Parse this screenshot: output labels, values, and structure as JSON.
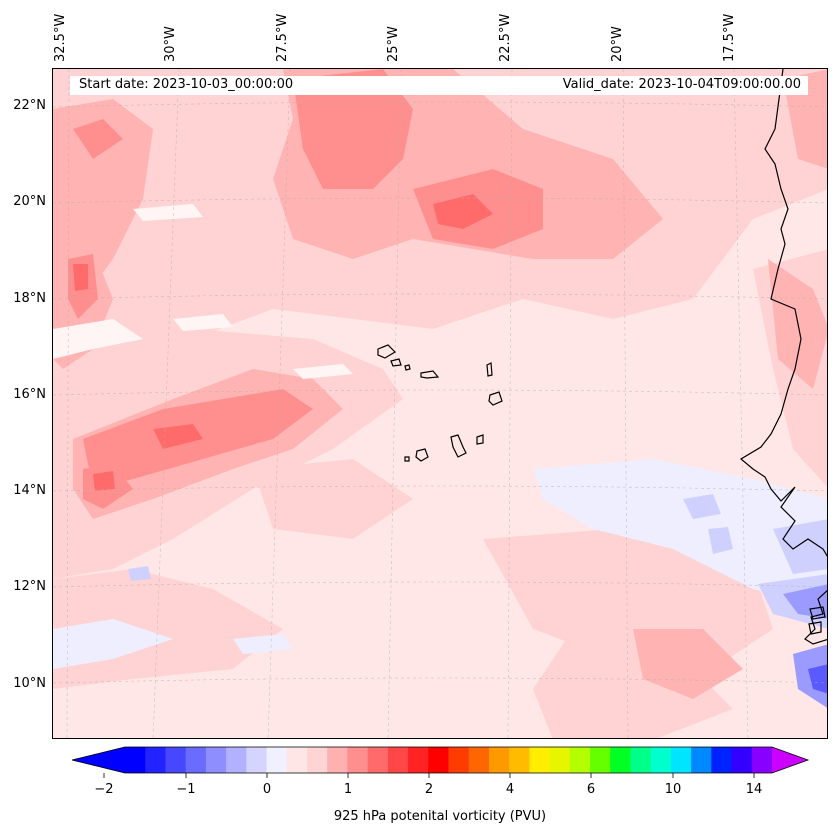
{
  "map": {
    "start_date": "Start date: 2023-10-03_00:00:00",
    "valid_date": "Valid_date: 2023-10-04T09:00:00.00",
    "longitude_labels": [
      "32.5°W",
      "30°W",
      "27.5°W",
      "25°W",
      "22.5°W",
      "20°W",
      "17.5°W"
    ],
    "latitude_labels": [
      "22°N",
      "20°N",
      "18°N",
      "16°N",
      "14°N",
      "12°N",
      "10°N"
    ],
    "gridlines": true
  },
  "colorbar": {
    "label": "925 hPa potenital vorticity (PVU)",
    "tick_labels": [
      "−2",
      "−1",
      "0",
      "1",
      "2",
      "4",
      "6",
      "10",
      "14"
    ],
    "colors": [
      "#0000ff",
      "#2323ff",
      "#4747ff",
      "#6b6bff",
      "#8e8eff",
      "#b1b1ff",
      "#d4d4ff",
      "#f0f0ff",
      "#ffe6e6",
      "#ffd4d4",
      "#ffb1b1",
      "#ff8e8e",
      "#ff6b6b",
      "#ff4747",
      "#ff2323",
      "#ff0000",
      "#ff3c00",
      "#ff6600",
      "#ff9900",
      "#ffbb00",
      "#ffee00",
      "#e6f500",
      "#b3ff00",
      "#66ff00",
      "#00ff22",
      "#00ff88",
      "#00ffcc",
      "#00e5ff",
      "#0088ff",
      "#0022ff",
      "#3300ff",
      "#8800ff"
    ],
    "extend_low": "#0000ff",
    "extend_high": "#cc00ff"
  },
  "field_colors": {
    "background": "#ffe7e7",
    "light": "#ffd3d3",
    "medium": "#ffb3b3",
    "strong": "#ff8f8f",
    "stronger": "#ff6b6b",
    "negative_light": "#eeeeff",
    "negative_medium": "#d0d0ff",
    "negative_strong": "#9b9bff",
    "negative_deep": "#5a5aff",
    "coastline": "#000000"
  }
}
